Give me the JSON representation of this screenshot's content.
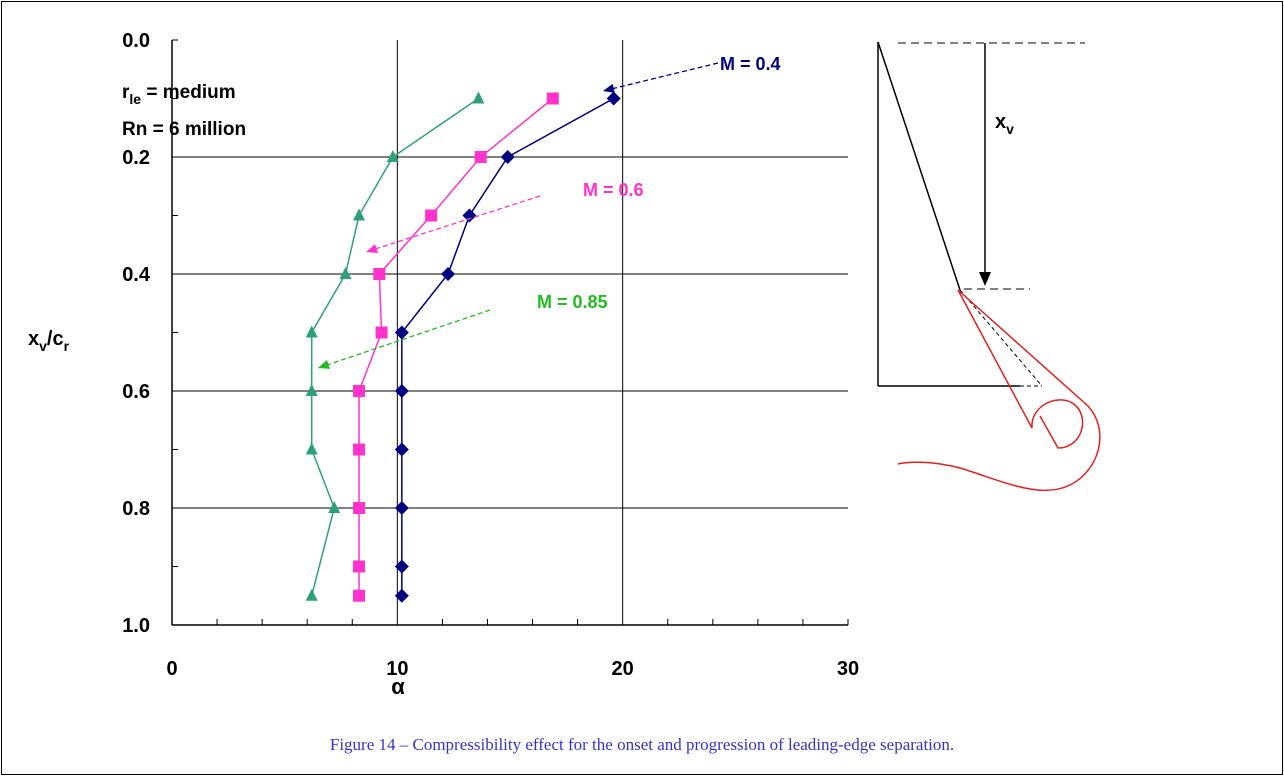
{
  "chart_data": {
    "type": "line",
    "xlabel": "α",
    "ylabel": {
      "main": "x",
      "sub": "v",
      "rest": "/c",
      "sub2": "r"
    },
    "annotation": [
      {
        "main": "r",
        "sub": "le",
        "rest": " = medium"
      },
      {
        "main": "Rn = 6 million"
      }
    ],
    "xlim": [
      0,
      30
    ],
    "xticks": [
      0,
      10,
      20,
      30
    ],
    "xminorticks": [
      2,
      4,
      6,
      8,
      12,
      14,
      16,
      18,
      22,
      24,
      26,
      28
    ],
    "ylim": [
      0,
      1
    ],
    "y_inverted": true,
    "yticks": [
      {
        "value": 0,
        "label": "0.0"
      },
      0.2,
      0.4,
      0.6,
      0.8,
      {
        "value": 1,
        "label": "1.0"
      }
    ],
    "yminorticks": [
      0.1,
      0.3,
      0.5,
      0.7,
      0.9
    ],
    "grid": true,
    "series": [
      {
        "name": "M = 0.4",
        "color": "#000080",
        "marker": "diamond",
        "x": [
          19.6,
          14.9,
          13.2,
          12.25,
          10.2,
          10.2,
          10.2,
          10.2,
          10.2,
          10.2
        ],
        "values": [
          0.1,
          0.2,
          0.3,
          0.4,
          0.5,
          0.6,
          0.7,
          0.8,
          0.9,
          0.95
        ]
      },
      {
        "name": "M = 0.6",
        "color": "#ff33cc",
        "marker": "square",
        "x": [
          16.9,
          13.7,
          11.5,
          9.2,
          9.3,
          8.3,
          8.3,
          8.3,
          8.3,
          8.3
        ],
        "values": [
          0.1,
          0.2,
          0.3,
          0.4,
          0.5,
          0.6,
          0.7,
          0.8,
          0.9,
          0.95
        ]
      },
      {
        "name": "M = 0.85",
        "color": "#2ca07a",
        "label_color": "#22bb22",
        "marker": "triangle",
        "x": [
          13.6,
          9.8,
          8.3,
          7.7,
          6.2,
          6.2,
          6.2,
          7.2,
          6.2
        ],
        "values": [
          0.1,
          0.2,
          0.3,
          0.4,
          0.5,
          0.6,
          0.7,
          0.8,
          0.95
        ]
      }
    ]
  },
  "diagram": {
    "label": {
      "main": "x",
      "sub": "v"
    }
  },
  "caption": "Figure 14 – Compressibility effect for the onset and progression of leading-edge separation."
}
